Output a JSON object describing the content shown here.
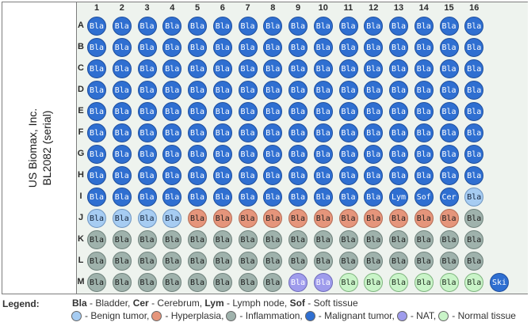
{
  "title": {
    "line1": "US Biomax, Inc.",
    "line2": "BL2082  (serial)"
  },
  "columns": [
    "1",
    "2",
    "3",
    "4",
    "5",
    "6",
    "7",
    "8",
    "9",
    "10",
    "11",
    "12",
    "13",
    "14",
    "15",
    "16"
  ],
  "rows": [
    {
      "label": "A",
      "spots": [
        [
          "Bla",
          "mal"
        ],
        [
          "Bla",
          "mal"
        ],
        [
          "Bla",
          "mal"
        ],
        [
          "Bla",
          "mal"
        ],
        [
          "Bla",
          "mal"
        ],
        [
          "Bla",
          "mal"
        ],
        [
          "Bla",
          "mal"
        ],
        [
          "Bla",
          "mal"
        ],
        [
          "Bla",
          "mal"
        ],
        [
          "Bla",
          "mal"
        ],
        [
          "Bla",
          "mal"
        ],
        [
          "Bla",
          "mal"
        ],
        [
          "Bla",
          "mal"
        ],
        [
          "Bla",
          "mal"
        ],
        [
          "Bla",
          "mal"
        ],
        [
          "Bla",
          "mal"
        ]
      ]
    },
    {
      "label": "B",
      "spots": [
        [
          "Bla",
          "mal"
        ],
        [
          "Bla",
          "mal"
        ],
        [
          "Bla",
          "mal"
        ],
        [
          "Bla",
          "mal"
        ],
        [
          "Bla",
          "mal"
        ],
        [
          "Bla",
          "mal"
        ],
        [
          "Bla",
          "mal"
        ],
        [
          "Bla",
          "mal"
        ],
        [
          "Bla",
          "mal"
        ],
        [
          "Bla",
          "mal"
        ],
        [
          "Bla",
          "mal"
        ],
        [
          "Bla",
          "mal"
        ],
        [
          "Bla",
          "mal"
        ],
        [
          "Bla",
          "mal"
        ],
        [
          "Bla",
          "mal"
        ],
        [
          "Bla",
          "mal"
        ]
      ]
    },
    {
      "label": "C",
      "spots": [
        [
          "Bla",
          "mal"
        ],
        [
          "Bla",
          "mal"
        ],
        [
          "Bla",
          "mal"
        ],
        [
          "Bla",
          "mal"
        ],
        [
          "Bla",
          "mal"
        ],
        [
          "Bla",
          "mal"
        ],
        [
          "Bla",
          "mal"
        ],
        [
          "Bla",
          "mal"
        ],
        [
          "Bla",
          "mal"
        ],
        [
          "Bla",
          "mal"
        ],
        [
          "Bla",
          "mal"
        ],
        [
          "Bla",
          "mal"
        ],
        [
          "Bla",
          "mal"
        ],
        [
          "Bla",
          "mal"
        ],
        [
          "Bla",
          "mal"
        ],
        [
          "Bla",
          "mal"
        ]
      ]
    },
    {
      "label": "D",
      "spots": [
        [
          "Bla",
          "mal"
        ],
        [
          "Bla",
          "mal"
        ],
        [
          "Bla",
          "mal"
        ],
        [
          "Bla",
          "mal"
        ],
        [
          "Bla",
          "mal"
        ],
        [
          "Bla",
          "mal"
        ],
        [
          "Bla",
          "mal"
        ],
        [
          "Bla",
          "mal"
        ],
        [
          "Bla",
          "mal"
        ],
        [
          "Bla",
          "mal"
        ],
        [
          "Bla",
          "mal"
        ],
        [
          "Bla",
          "mal"
        ],
        [
          "Bla",
          "mal"
        ],
        [
          "Bla",
          "mal"
        ],
        [
          "Bla",
          "mal"
        ],
        [
          "Bla",
          "mal"
        ]
      ]
    },
    {
      "label": "E",
      "spots": [
        [
          "Bla",
          "mal"
        ],
        [
          "Bla",
          "mal"
        ],
        [
          "Bla",
          "mal"
        ],
        [
          "Bla",
          "mal"
        ],
        [
          "Bla",
          "mal"
        ],
        [
          "Bla",
          "mal"
        ],
        [
          "Bla",
          "mal"
        ],
        [
          "Bla",
          "mal"
        ],
        [
          "Bla",
          "mal"
        ],
        [
          "Bla",
          "mal"
        ],
        [
          "Bla",
          "mal"
        ],
        [
          "Bla",
          "mal"
        ],
        [
          "Bla",
          "mal"
        ],
        [
          "Bla",
          "mal"
        ],
        [
          "Bla",
          "mal"
        ],
        [
          "Bla",
          "mal"
        ]
      ]
    },
    {
      "label": "F",
      "spots": [
        [
          "Bla",
          "mal"
        ],
        [
          "Bla",
          "mal"
        ],
        [
          "Bla",
          "mal"
        ],
        [
          "Bla",
          "mal"
        ],
        [
          "Bla",
          "mal"
        ],
        [
          "Bla",
          "mal"
        ],
        [
          "Bla",
          "mal"
        ],
        [
          "Bla",
          "mal"
        ],
        [
          "Bla",
          "mal"
        ],
        [
          "Bla",
          "mal"
        ],
        [
          "Bla",
          "mal"
        ],
        [
          "Bla",
          "mal"
        ],
        [
          "Bla",
          "mal"
        ],
        [
          "Bla",
          "mal"
        ],
        [
          "Bla",
          "mal"
        ],
        [
          "Bla",
          "mal"
        ]
      ]
    },
    {
      "label": "G",
      "spots": [
        [
          "Bla",
          "mal"
        ],
        [
          "Bla",
          "mal"
        ],
        [
          "Bla",
          "mal"
        ],
        [
          "Bla",
          "mal"
        ],
        [
          "Bla",
          "mal"
        ],
        [
          "Bla",
          "mal"
        ],
        [
          "Bla",
          "mal"
        ],
        [
          "Bla",
          "mal"
        ],
        [
          "Bla",
          "mal"
        ],
        [
          "Bla",
          "mal"
        ],
        [
          "Bla",
          "mal"
        ],
        [
          "Bla",
          "mal"
        ],
        [
          "Bla",
          "mal"
        ],
        [
          "Bla",
          "mal"
        ],
        [
          "Bla",
          "mal"
        ],
        [
          "Bla",
          "mal"
        ]
      ]
    },
    {
      "label": "H",
      "spots": [
        [
          "Bla",
          "mal"
        ],
        [
          "Bla",
          "mal"
        ],
        [
          "Bla",
          "mal"
        ],
        [
          "Bla",
          "mal"
        ],
        [
          "Bla",
          "mal"
        ],
        [
          "Bla",
          "mal"
        ],
        [
          "Bla",
          "mal"
        ],
        [
          "Bla",
          "mal"
        ],
        [
          "Bla",
          "mal"
        ],
        [
          "Bla",
          "mal"
        ],
        [
          "Bla",
          "mal"
        ],
        [
          "Bla",
          "mal"
        ],
        [
          "Bla",
          "mal"
        ],
        [
          "Bla",
          "mal"
        ],
        [
          "Bla",
          "mal"
        ],
        [
          "Bla",
          "mal"
        ]
      ]
    },
    {
      "label": "I",
      "spots": [
        [
          "Bla",
          "mal"
        ],
        [
          "Bla",
          "mal"
        ],
        [
          "Bla",
          "mal"
        ],
        [
          "Bla",
          "mal"
        ],
        [
          "Bla",
          "mal"
        ],
        [
          "Bla",
          "mal"
        ],
        [
          "Bla",
          "mal"
        ],
        [
          "Bla",
          "mal"
        ],
        [
          "Bla",
          "mal"
        ],
        [
          "Bla",
          "mal"
        ],
        [
          "Bla",
          "mal"
        ],
        [
          "Bla",
          "mal"
        ],
        [
          "Lym",
          "mal"
        ],
        [
          "Sof",
          "mal"
        ],
        [
          "Cer",
          "mal"
        ],
        [
          "Bla",
          "ben"
        ]
      ]
    },
    {
      "label": "J",
      "spots": [
        [
          "Bla",
          "ben"
        ],
        [
          "Bla",
          "ben"
        ],
        [
          "Bla",
          "ben"
        ],
        [
          "Bla",
          "ben"
        ],
        [
          "Bla",
          "hyp"
        ],
        [
          "Bla",
          "hyp"
        ],
        [
          "Bla",
          "hyp"
        ],
        [
          "Bla",
          "hyp"
        ],
        [
          "Bla",
          "hyp"
        ],
        [
          "Bla",
          "hyp"
        ],
        [
          "Bla",
          "hyp"
        ],
        [
          "Bla",
          "hyp"
        ],
        [
          "Bla",
          "hyp"
        ],
        [
          "Bla",
          "hyp"
        ],
        [
          "Bla",
          "hyp"
        ],
        [
          "Bla",
          "inf"
        ]
      ]
    },
    {
      "label": "K",
      "spots": [
        [
          "Bla",
          "inf"
        ],
        [
          "Bla",
          "inf"
        ],
        [
          "Bla",
          "inf"
        ],
        [
          "Bla",
          "inf"
        ],
        [
          "Bla",
          "inf"
        ],
        [
          "Bla",
          "inf"
        ],
        [
          "Bla",
          "inf"
        ],
        [
          "Bla",
          "inf"
        ],
        [
          "Bla",
          "inf"
        ],
        [
          "Bla",
          "inf"
        ],
        [
          "Bla",
          "inf"
        ],
        [
          "Bla",
          "inf"
        ],
        [
          "Bla",
          "inf"
        ],
        [
          "Bla",
          "inf"
        ],
        [
          "Bla",
          "inf"
        ],
        [
          "Bla",
          "inf"
        ]
      ]
    },
    {
      "label": "L",
      "spots": [
        [
          "Bla",
          "inf"
        ],
        [
          "Bla",
          "inf"
        ],
        [
          "Bla",
          "inf"
        ],
        [
          "Bla",
          "inf"
        ],
        [
          "Bla",
          "inf"
        ],
        [
          "Bla",
          "inf"
        ],
        [
          "Bla",
          "inf"
        ],
        [
          "Bla",
          "inf"
        ],
        [
          "Bla",
          "inf"
        ],
        [
          "Bla",
          "inf"
        ],
        [
          "Bla",
          "inf"
        ],
        [
          "Bla",
          "inf"
        ],
        [
          "Bla",
          "inf"
        ],
        [
          "Bla",
          "inf"
        ],
        [
          "Bla",
          "inf"
        ],
        [
          "Bla",
          "inf"
        ]
      ]
    },
    {
      "label": "M",
      "spots": [
        [
          "Bla",
          "inf"
        ],
        [
          "Bla",
          "inf"
        ],
        [
          "Bla",
          "inf"
        ],
        [
          "Bla",
          "inf"
        ],
        [
          "Bla",
          "inf"
        ],
        [
          "Bla",
          "inf"
        ],
        [
          "Bla",
          "inf"
        ],
        [
          "Bla",
          "inf"
        ],
        [
          "Bla",
          "nat"
        ],
        [
          "Bla",
          "nat"
        ],
        [
          "Bla",
          "nor"
        ],
        [
          "Bla",
          "nor"
        ],
        [
          "Bla",
          "nor"
        ],
        [
          "Bla",
          "nor"
        ],
        [
          "Bla",
          "nor"
        ],
        [
          "Bla",
          "nor"
        ],
        [
          "Ski",
          "mal"
        ]
      ]
    }
  ],
  "legend": {
    "title": "Legend:",
    "abbreviations": [
      {
        "code": "Bla",
        "text": " - Bladder, "
      },
      {
        "code": "Cer",
        "text": " - Cerebrum, "
      },
      {
        "code": "Lym",
        "text": " - Lymph node, "
      },
      {
        "code": "Sof",
        "text": " - Soft tissue"
      }
    ],
    "statuses": [
      {
        "key": "ben",
        "text": " - Benign tumor,",
        "color": "#a6ccf2"
      },
      {
        "key": "hyp",
        "text": " - Hyperplasia,",
        "color": "#e5957b"
      },
      {
        "key": "inf",
        "text": " - Inflammation,",
        "color": "#9fb2ac"
      },
      {
        "key": "mal",
        "text": " - Malignant tumor,",
        "color": "#2f6fd1"
      },
      {
        "key": "nat",
        "text": " - NAT,",
        "color": "#9f9cec"
      },
      {
        "key": "nor",
        "text": " - Normal tissue",
        "color": "#c9f4c8"
      }
    ]
  }
}
